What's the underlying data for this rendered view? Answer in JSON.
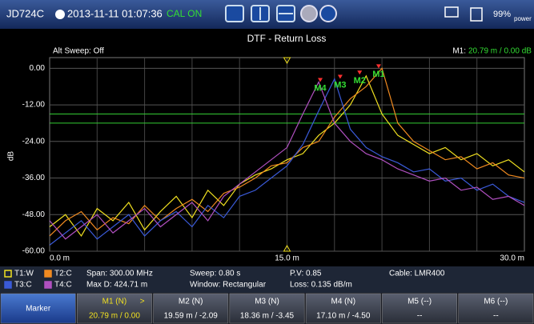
{
  "status_bar": {
    "model": "JD724C",
    "datetime": "2013-11-11 01:07:36",
    "cal": "CAL ON",
    "battery": "99%",
    "power": "power"
  },
  "chart_data": {
    "type": "line",
    "title": "DTF - Return Loss",
    "subtitle": "Alt Sweep: Off",
    "readout_label": "M1:",
    "readout": "20.79 m / 0.00 dB",
    "y_label": "dB",
    "x": [
      0,
      1,
      2,
      3,
      4,
      5,
      6,
      7,
      8,
      9,
      10,
      11,
      12,
      13,
      14,
      15,
      16,
      17,
      18,
      19,
      20,
      21,
      22,
      23,
      24,
      25,
      26,
      27,
      28,
      29,
      30
    ],
    "xlim": [
      0,
      30
    ],
    "xticks": [
      {
        "value": 0,
        "label": "0.0 m"
      },
      {
        "value": 15,
        "label": "15.0 m"
      },
      {
        "value": 30,
        "label": "30.0 m"
      }
    ],
    "ylim": [
      -60,
      3.5
    ],
    "yticks": [
      {
        "value": 0,
        "label": "0.00"
      },
      {
        "value": -12,
        "label": "-12.00"
      },
      {
        "value": -24,
        "label": "-24.00"
      },
      {
        "value": -36,
        "label": "-36.00"
      },
      {
        "value": -48,
        "label": "-48.00"
      },
      {
        "value": -60,
        "label": "-60.00"
      }
    ],
    "grid": true,
    "limit_lines": [
      -15,
      -18
    ],
    "limit_color": "#33cc33",
    "cursor_x": 15,
    "cursor_color": "#f0e020",
    "series": [
      {
        "name": "T1:W",
        "color": "#f0e020",
        "values": [
          -52,
          -48,
          -55,
          -46,
          -50,
          -44,
          -53,
          -47,
          -42,
          -49,
          -40,
          -45,
          -38,
          -35,
          -33,
          -30,
          -28,
          -22,
          -18,
          -12,
          -2.5,
          -15,
          -22,
          -25,
          -28,
          -26,
          -30,
          -28,
          -32,
          -30,
          -34
        ]
      },
      {
        "name": "T2:C",
        "color": "#f08a20",
        "values": [
          -55,
          -50,
          -47,
          -53,
          -49,
          -51,
          -45,
          -50,
          -46,
          -43,
          -47,
          -41,
          -39,
          -36,
          -32,
          -31,
          -26,
          -24,
          -16,
          -10,
          -6,
          0,
          -18,
          -24,
          -27,
          -30,
          -29,
          -33,
          -31,
          -35,
          -36
        ]
      },
      {
        "name": "T3:C",
        "color": "#3a5ad8",
        "values": [
          -58,
          -54,
          -50,
          -56,
          -52,
          -48,
          -55,
          -50,
          -47,
          -52,
          -45,
          -49,
          -42,
          -40,
          -36,
          -32,
          -25,
          -14,
          -3.5,
          -20,
          -26,
          -29,
          -31,
          -34,
          -33,
          -37,
          -36,
          -40,
          -38,
          -42,
          -44
        ]
      },
      {
        "name": "T4:C",
        "color": "#b050c0",
        "values": [
          -50,
          -56,
          -52,
          -48,
          -54,
          -50,
          -46,
          -52,
          -48,
          -44,
          -50,
          -42,
          -38,
          -34,
          -30,
          -26,
          -15,
          -4.5,
          -18,
          -24,
          -28,
          -30,
          -33,
          -35,
          -37,
          -36,
          -40,
          -39,
          -43,
          -42,
          -45
        ]
      }
    ],
    "markers": [
      {
        "label": "M1",
        "x": 20.79,
        "y": 0
      },
      {
        "label": "M2",
        "x": 19.59,
        "y": -2.09
      },
      {
        "label": "M3",
        "x": 18.36,
        "y": -3.45
      },
      {
        "label": "M4",
        "x": 17.1,
        "y": -4.5
      }
    ]
  },
  "info": {
    "span": "Span: 300.00 MHz",
    "max_d": "Max D: 424.71 m",
    "sweep": "Sweep: 0.80 s",
    "window": "Window: Rectangular",
    "pv": "P.V: 0.85",
    "loss": "Loss: 0.135 dB/m",
    "cable": "Cable: LMR400"
  },
  "softkeys": [
    {
      "title": "Marker"
    },
    {
      "title": "M1 (N)",
      "arrow": ">",
      "value": "20.79 m / 0.00"
    },
    {
      "title": "M2 (N)",
      "value": "19.59 m / -2.09"
    },
    {
      "title": "M3 (N)",
      "value": "18.36 m / -3.45"
    },
    {
      "title": "M4 (N)",
      "value": "17.10 m / -4.50"
    },
    {
      "title": "M5 (--)",
      "value": "--"
    },
    {
      "title": "M6 (--)",
      "value": "--"
    }
  ]
}
